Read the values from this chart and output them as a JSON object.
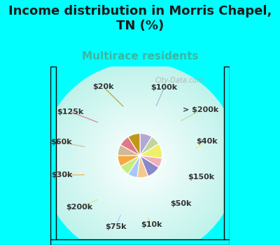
{
  "title": "Income distribution in Morris Chapel,\nTN (%)",
  "subtitle": "Multirace residents",
  "bg_cyan": "#00FFFF",
  "bg_chart_outer": "#b0ede8",
  "bg_chart_inner": "#f0faf8",
  "labels": [
    "$100k",
    "> $200k",
    "$40k",
    "$150k",
    "$50k",
    "$10k",
    "$75k",
    "$200k",
    "$30k",
    "$60k",
    "$125k",
    "$20k"
  ],
  "values": [
    9,
    7,
    11,
    7,
    10,
    8,
    7,
    8,
    8,
    8,
    8,
    9
  ],
  "colors": [
    "#b3a8d4",
    "#c0d4a0",
    "#f0ef6a",
    "#f0b0b8",
    "#8888cc",
    "#f5c890",
    "#a8c8f8",
    "#c8ec80",
    "#f5a840",
    "#d0b898",
    "#e07888",
    "#c09818"
  ],
  "watermark": "City-Data.com",
  "label_color": "#333333",
  "subtitle_color": "#3ab8a0",
  "title_fontsize": 13,
  "subtitle_fontsize": 11,
  "label_fontsize": 8
}
